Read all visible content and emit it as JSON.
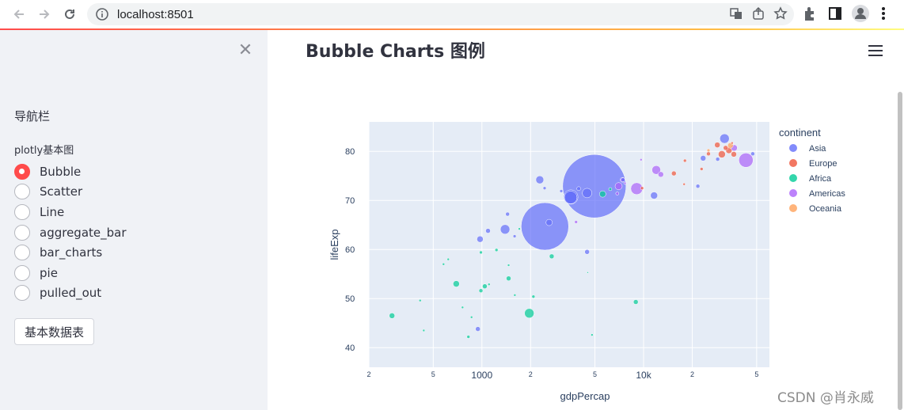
{
  "browser": {
    "url": "localhost:8501"
  },
  "sidebar": {
    "nav_title": "导航栏",
    "radio_label": "plotly基本图",
    "options": [
      {
        "label": "Bubble",
        "checked": true
      },
      {
        "label": "Scatter",
        "checked": false
      },
      {
        "label": "Line",
        "checked": false
      },
      {
        "label": "aggregate_bar",
        "checked": false
      },
      {
        "label": "bar_charts",
        "checked": false
      },
      {
        "label": "pie",
        "checked": false
      },
      {
        "label": "pulled_out",
        "checked": false
      }
    ],
    "button_label": "基本数据表"
  },
  "main": {
    "title": "Bubble Charts 图例"
  },
  "watermark": "CSDN @肖永威",
  "chart_data": {
    "type": "scatter",
    "xlabel": "gdpPercap",
    "ylabel": "lifeExp",
    "x_scale": "log",
    "xlim": [
      200,
      60000
    ],
    "ylim": [
      36,
      86
    ],
    "x_ticks": [
      {
        "value": 200,
        "label": "2"
      },
      {
        "value": 500,
        "label": "5"
      },
      {
        "value": 1000,
        "label": "1000"
      },
      {
        "value": 2000,
        "label": "2"
      },
      {
        "value": 5000,
        "label": "5"
      },
      {
        "value": 10000,
        "label": "10k"
      },
      {
        "value": 20000,
        "label": "2"
      },
      {
        "value": 50000,
        "label": "5"
      }
    ],
    "y_ticks": [
      40,
      50,
      60,
      70,
      80
    ],
    "legend_title": "continent",
    "legend_position": "right",
    "series": [
      {
        "name": "Asia",
        "color": "#636efa",
        "points": [
          {
            "x": 2452,
            "y": 64.7,
            "size": 60
          },
          {
            "x": 4959,
            "y": 72.9,
            "size": 80
          },
          {
            "x": 3548,
            "y": 70.7,
            "size": 18
          },
          {
            "x": 2280,
            "y": 74.2,
            "size": 10
          },
          {
            "x": 1391,
            "y": 64.1,
            "size": 12
          },
          {
            "x": 3541,
            "y": 70.6,
            "size": 16
          },
          {
            "x": 4472,
            "y": 71.5,
            "size": 12
          },
          {
            "x": 31656,
            "y": 82.6,
            "size": 12
          },
          {
            "x": 974,
            "y": 62.1,
            "size": 8
          },
          {
            "x": 1091,
            "y": 63.8,
            "size": 6
          },
          {
            "x": 2605,
            "y": 65.5,
            "size": 8
          },
          {
            "x": 4471,
            "y": 59.5,
            "size": 6
          },
          {
            "x": 944,
            "y": 43.8,
            "size": 6
          },
          {
            "x": 11606,
            "y": 71.0,
            "size": 9
          },
          {
            "x": 21655,
            "y": 72.9,
            "size": 5
          },
          {
            "x": 47307,
            "y": 79.5,
            "size": 5
          },
          {
            "x": 3095,
            "y": 71.9,
            "size": 4
          },
          {
            "x": 1441,
            "y": 67.2,
            "size": 5
          },
          {
            "x": 23348,
            "y": 78.6,
            "size": 7
          },
          {
            "x": 28718,
            "y": 78.4,
            "size": 5
          },
          {
            "x": 3970,
            "y": 72.4,
            "size": 5
          },
          {
            "x": 7458,
            "y": 74.2,
            "size": 5
          },
          {
            "x": 1593,
            "y": 62.7,
            "size": 4
          },
          {
            "x": 2442,
            "y": 72.5,
            "size": 4
          }
        ]
      },
      {
        "name": "Europe",
        "color": "#ef553b",
        "points": [
          {
            "x": 30470,
            "y": 79.4,
            "size": 9
          },
          {
            "x": 33692,
            "y": 80.2,
            "size": 8
          },
          {
            "x": 28570,
            "y": 81.3,
            "size": 7
          },
          {
            "x": 36126,
            "y": 79.4,
            "size": 7
          },
          {
            "x": 32170,
            "y": 80.7,
            "size": 6
          },
          {
            "x": 15390,
            "y": 75.5,
            "size": 6
          },
          {
            "x": 25184,
            "y": 79.5,
            "size": 5
          },
          {
            "x": 22833,
            "y": 76.4,
            "size": 4
          },
          {
            "x": 18009,
            "y": 78.1,
            "size": 4
          },
          {
            "x": 9786,
            "y": 72.5,
            "size": 4
          },
          {
            "x": 17800,
            "y": 73.3,
            "size": 3
          },
          {
            "x": 35278,
            "y": 81.7,
            "size": 3
          }
        ]
      },
      {
        "name": "Africa",
        "color": "#00cc96",
        "points": [
          {
            "x": 1963,
            "y": 47.0,
            "size": 12
          },
          {
            "x": 694,
            "y": 53.0,
            "size": 8
          },
          {
            "x": 278,
            "y": 46.5,
            "size": 7
          },
          {
            "x": 1463,
            "y": 54.1,
            "size": 6
          },
          {
            "x": 8948,
            "y": 49.3,
            "size": 6
          },
          {
            "x": 2702,
            "y": 58.6,
            "size": 6
          },
          {
            "x": 5581,
            "y": 71.3,
            "size": 8
          },
          {
            "x": 1042,
            "y": 52.5,
            "size": 6
          },
          {
            "x": 986,
            "y": 51.6,
            "size": 5
          },
          {
            "x": 1231,
            "y": 59.9,
            "size": 4
          },
          {
            "x": 4797,
            "y": 42.6,
            "size": 3
          },
          {
            "x": 1463,
            "y": 56.8,
            "size": 3
          },
          {
            "x": 825,
            "y": 42.2,
            "size": 4
          },
          {
            "x": 437,
            "y": 43.5,
            "size": 3
          },
          {
            "x": 2082,
            "y": 50.4,
            "size": 4
          },
          {
            "x": 1598,
            "y": 50.7,
            "size": 3
          },
          {
            "x": 759,
            "y": 48.2,
            "size": 3
          },
          {
            "x": 619,
            "y": 58.0,
            "size": 3
          },
          {
            "x": 986,
            "y": 59.4,
            "size": 4
          },
          {
            "x": 1704,
            "y": 64.2,
            "size": 3
          },
          {
            "x": 4513,
            "y": 55.3,
            "size": 2
          },
          {
            "x": 1107,
            "y": 52.9,
            "size": 3
          },
          {
            "x": 415,
            "y": 49.6,
            "size": 3
          },
          {
            "x": 579,
            "y": 57.0,
            "size": 3
          },
          {
            "x": 6223,
            "y": 72.3,
            "size": 4
          },
          {
            "x": 863,
            "y": 46.2,
            "size": 3
          }
        ]
      },
      {
        "name": "Americas",
        "color": "#ab63fa",
        "points": [
          {
            "x": 42952,
            "y": 78.2,
            "size": 18
          },
          {
            "x": 9065,
            "y": 72.4,
            "size": 15
          },
          {
            "x": 11977,
            "y": 76.2,
            "size": 11
          },
          {
            "x": 36319,
            "y": 80.7,
            "size": 8
          },
          {
            "x": 7007,
            "y": 72.9,
            "size": 9
          },
          {
            "x": 12779,
            "y": 75.3,
            "size": 7
          },
          {
            "x": 7408,
            "y": 74.2,
            "size": 6
          },
          {
            "x": 3822,
            "y": 65.6,
            "size": 4
          },
          {
            "x": 6873,
            "y": 71.4,
            "size": 4
          },
          {
            "x": 9645,
            "y": 78.3,
            "size": 3
          },
          {
            "x": 7670,
            "y": 73.5,
            "size": 3
          }
        ]
      },
      {
        "name": "Oceania",
        "color": "#ffa15a",
        "points": [
          {
            "x": 34435,
            "y": 81.2,
            "size": 7
          },
          {
            "x": 25185,
            "y": 80.2,
            "size": 4
          }
        ]
      }
    ]
  }
}
